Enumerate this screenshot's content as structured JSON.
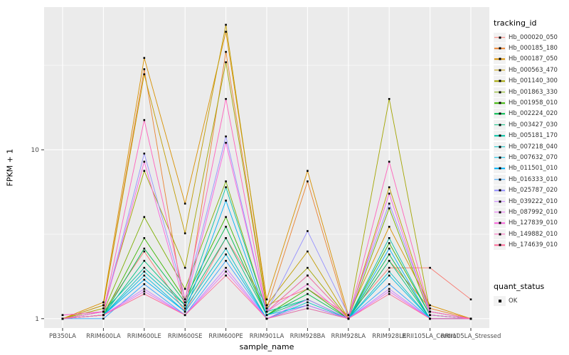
{
  "chart_data": {
    "type": "line",
    "title": "",
    "xlabel": "sample_name",
    "ylabel": "FPKM + 1",
    "y_scale": "log10",
    "y_ticks": [
      1,
      10
    ],
    "y_minor_breaks": [
      3.162,
      31.623
    ],
    "ylim": [
      0.88,
      70
    ],
    "panel_bg": "#EBEBEB",
    "grid_color": "#FFFFFF",
    "point_color": "#000000",
    "categories": [
      "PB350LA",
      "RRIM600LA",
      "RRIM600LE",
      "RRIM600SE",
      "RRIM600PE",
      "RRIM901LA",
      "RRIM928BA",
      "RRIM928LA",
      "RRIM928LE",
      "RRII105LA_Control",
      "RRII105LA_Stressed"
    ],
    "legend": {
      "title": "tracking_id",
      "position": "right"
    },
    "quant_legend": {
      "title": "quant_status",
      "items": [
        {
          "label": "OK",
          "marker": "black-square"
        }
      ]
    },
    "series": [
      {
        "name": "Hb_000020_050",
        "color": "#F8766D",
        "values": [
          1.05,
          1.1,
          2.5,
          1.1,
          3.0,
          1.2,
          1.5,
          1.05,
          2.0,
          2.0,
          1.3
        ]
      },
      {
        "name": "Hb_000185_180",
        "color": "#EA8331",
        "values": [
          1.0,
          1.2,
          30.0,
          1.1,
          38.0,
          1.15,
          6.5,
          1.0,
          2.2,
          1.15,
          1.0
        ]
      },
      {
        "name": "Hb_000187_050",
        "color": "#D89000",
        "values": [
          1.0,
          1.25,
          35.0,
          4.8,
          50.0,
          1.3,
          7.5,
          1.05,
          3.5,
          1.2,
          1.0
        ]
      },
      {
        "name": "Hb_000563_470",
        "color": "#C09B00",
        "values": [
          1.0,
          1.2,
          28.0,
          3.2,
          55.0,
          1.2,
          2.5,
          1.0,
          6.0,
          1.1,
          1.0
        ]
      },
      {
        "name": "Hb_001140_300",
        "color": "#A3A500",
        "values": [
          1.0,
          1.15,
          7.5,
          2.0,
          33.0,
          1.15,
          2.0,
          1.0,
          20.0,
          1.1,
          1.0
        ]
      },
      {
        "name": "Hb_001863_330",
        "color": "#7CAE00",
        "values": [
          1.0,
          1.1,
          4.0,
          1.5,
          6.5,
          1.1,
          1.8,
          1.0,
          4.5,
          1.05,
          1.0
        ]
      },
      {
        "name": "Hb_001958_010",
        "color": "#39B600",
        "values": [
          1.0,
          1.05,
          3.0,
          1.3,
          4.0,
          1.05,
          1.5,
          1.0,
          2.8,
          1.05,
          1.0
        ]
      },
      {
        "name": "Hb_002224_020",
        "color": "#00BB4E",
        "values": [
          1.0,
          1.05,
          2.6,
          1.25,
          3.5,
          1.05,
          1.4,
          1.0,
          2.4,
          1.0,
          1.0
        ]
      },
      {
        "name": "Hb_003427_030",
        "color": "#00BF7D",
        "values": [
          1.0,
          1.05,
          2.2,
          1.2,
          3.0,
          1.05,
          1.3,
          1.0,
          2.2,
          1.0,
          1.0
        ]
      },
      {
        "name": "Hb_005181_170",
        "color": "#00C1A3",
        "values": [
          1.0,
          1.1,
          2.0,
          1.2,
          6.0,
          1.1,
          1.3,
          1.0,
          3.0,
          1.05,
          1.0
        ]
      },
      {
        "name": "Hb_007218_040",
        "color": "#00BFC4",
        "values": [
          1.0,
          1.05,
          1.9,
          1.15,
          2.6,
          1.0,
          1.25,
          1.0,
          1.9,
          1.0,
          1.0
        ]
      },
      {
        "name": "Hb_007632_070",
        "color": "#00BAE0",
        "values": [
          1.0,
          1.05,
          1.8,
          1.1,
          2.4,
          1.0,
          1.2,
          1.0,
          1.8,
          1.0,
          1.0
        ]
      },
      {
        "name": "Hb_011501_010",
        "color": "#00B0F6",
        "values": [
          1.0,
          1.05,
          1.7,
          1.1,
          5.0,
          1.05,
          1.2,
          1.0,
          2.6,
          1.0,
          1.0
        ]
      },
      {
        "name": "Hb_016333_010",
        "color": "#35A2FF",
        "values": [
          1.0,
          1.0,
          1.6,
          1.05,
          2.2,
          1.0,
          1.15,
          1.0,
          1.6,
          1.0,
          1.0
        ]
      },
      {
        "name": "Hb_025787_020",
        "color": "#9590FF",
        "values": [
          1.0,
          1.1,
          9.5,
          1.3,
          12.0,
          1.1,
          3.3,
          1.05,
          4.8,
          1.1,
          1.0
        ]
      },
      {
        "name": "Hb_039222_010",
        "color": "#C77CFF",
        "values": [
          1.0,
          1.05,
          1.5,
          1.05,
          2.0,
          1.0,
          1.3,
          1.0,
          1.5,
          1.0,
          1.0
        ]
      },
      {
        "name": "Hb_087992_010",
        "color": "#E76BF3",
        "values": [
          1.0,
          1.05,
          1.45,
          1.05,
          1.9,
          1.0,
          1.2,
          1.0,
          1.45,
          1.0,
          1.0
        ]
      },
      {
        "name": "Hb_127839_010",
        "color": "#FA62DB",
        "values": [
          1.05,
          1.1,
          8.5,
          1.2,
          11.0,
          1.1,
          1.6,
          1.0,
          5.5,
          1.05,
          1.0
        ]
      },
      {
        "name": "Hb_149882_010",
        "color": "#FF62BC",
        "values": [
          1.0,
          1.1,
          15.0,
          1.3,
          20.0,
          1.1,
          1.8,
          1.0,
          8.5,
          1.1,
          1.0
        ]
      },
      {
        "name": "Hb_174639_010",
        "color": "#FF6A98",
        "values": [
          1.0,
          1.05,
          1.4,
          1.05,
          1.8,
          1.0,
          1.15,
          1.0,
          1.4,
          1.0,
          1.0
        ]
      }
    ]
  }
}
